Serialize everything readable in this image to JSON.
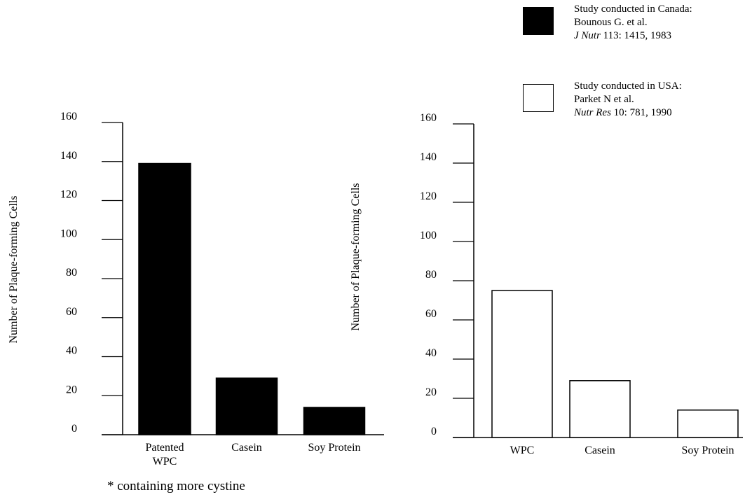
{
  "legend": [
    {
      "name": "legend-canada",
      "style": "filled",
      "line1": "Study conducted in Canada:",
      "line2": "Bounous G. et al.",
      "journal": "J Nutr",
      "citation": " 113: 1415, 1983"
    },
    {
      "name": "legend-usa",
      "style": "empty",
      "line1": "Study conducted in USA:",
      "line2": "Parket N et al.",
      "journal": "Nutr Res",
      "citation": " 10: 781, 1990"
    }
  ],
  "footnote": "* containing more cystine",
  "chart_data": [
    {
      "type": "bar",
      "ylabel": "Number of Plaque-forming Cells",
      "ylim": [
        0,
        160
      ],
      "yticks": [
        0,
        20,
        40,
        60,
        80,
        100,
        120,
        140,
        160
      ],
      "categories": [
        [
          "Patented",
          "WPC"
        ],
        [
          "Casein"
        ],
        [
          "Soy Protein"
        ]
      ],
      "values": [
        139,
        29,
        14
      ],
      "fill": "#000000"
    },
    {
      "type": "bar",
      "ylabel": "Number of Plaque-forming Cells",
      "ylim": [
        0,
        160
      ],
      "yticks": [
        0,
        20,
        40,
        60,
        80,
        100,
        120,
        140,
        160
      ],
      "categories": [
        [
          "WPC"
        ],
        [
          "Casein"
        ],
        [
          "Soy Protein"
        ]
      ],
      "values": [
        75,
        29,
        14
      ],
      "fill": "#ffffff"
    }
  ]
}
